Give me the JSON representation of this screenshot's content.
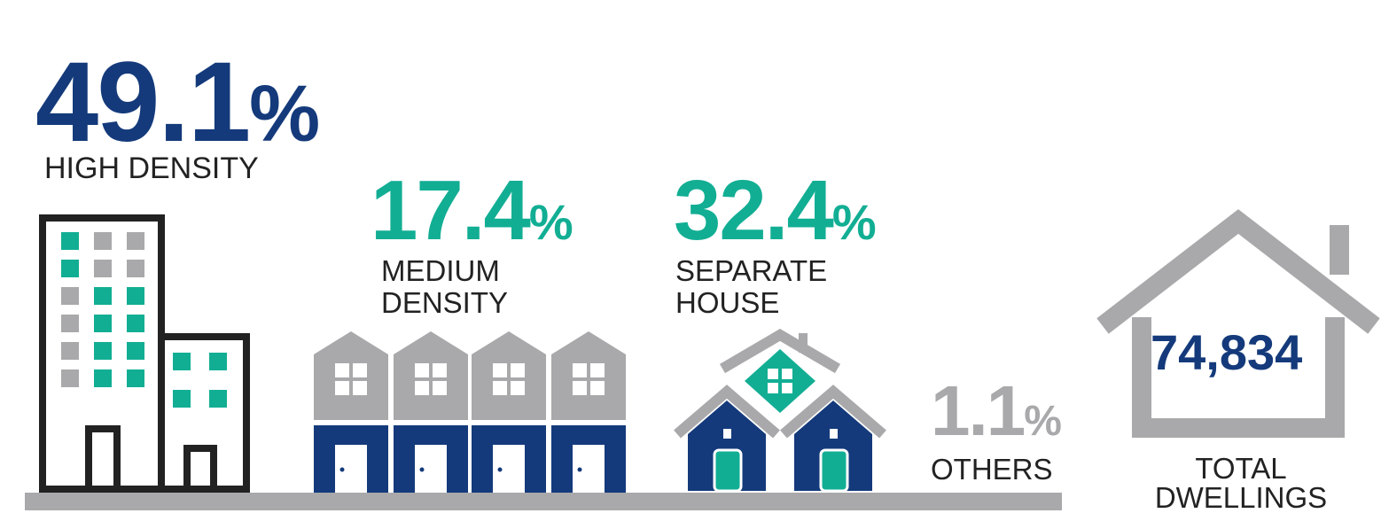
{
  "colors": {
    "navy": "#143a7b",
    "teal": "#12ae94",
    "grey": "#a9a9ab",
    "dark": "#222222",
    "ground": "#a9a9ab"
  },
  "high_density": {
    "value": "49.1",
    "unit": "%",
    "label": "HIGH DENSITY",
    "icon": "apartment-building-icon"
  },
  "medium_density": {
    "value": "17.4",
    "unit": "%",
    "label_line1": "MEDIUM",
    "label_line2": "DENSITY",
    "icon": "townhouses-icon"
  },
  "separate_house": {
    "value": "32.4",
    "unit": "%",
    "label_line1": "SEPARATE",
    "label_line2": "HOUSE",
    "icon": "detached-house-icon"
  },
  "others": {
    "value": "1.1",
    "unit": "%",
    "label": "OTHERS"
  },
  "total": {
    "value": "74,834",
    "label_line1": "TOTAL",
    "label_line2": "DWELLINGS",
    "icon": "house-outline-icon"
  }
}
